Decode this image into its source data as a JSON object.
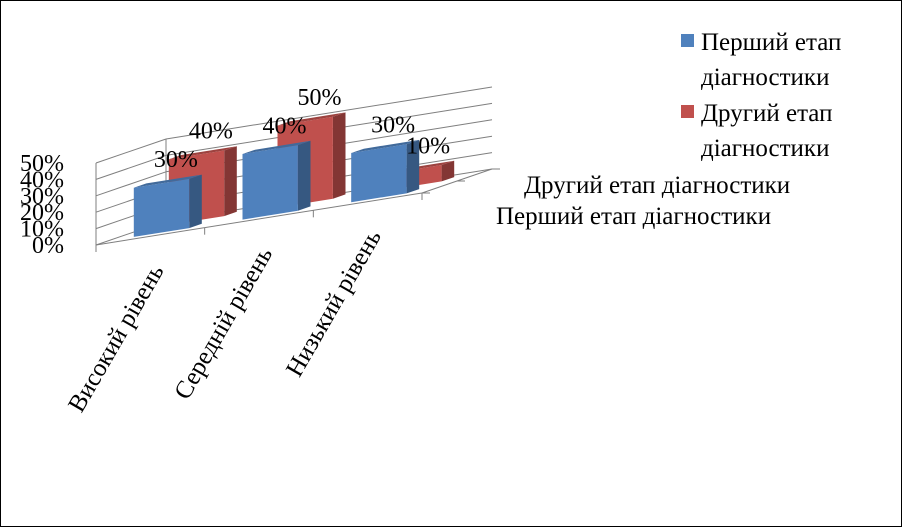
{
  "chart_data": {
    "type": "bar",
    "view": "3d-clustered-column",
    "categories": [
      "Високий рівень",
      "Середній рівень",
      "Низький рівень"
    ],
    "series": [
      {
        "name": "Перший етап діагностики",
        "values": [
          30,
          40,
          30
        ],
        "labels": [
          "30%",
          "40%",
          "30%"
        ],
        "color": "#4F81BD"
      },
      {
        "name": "Другий етап діагностики",
        "values": [
          40,
          50,
          10
        ],
        "labels": [
          "40%",
          "50%",
          "10%"
        ],
        "color": "#C0504D"
      }
    ],
    "y_ticks": [
      "0%",
      "10%",
      "20%",
      "30%",
      "40%",
      "50%"
    ],
    "depth_labels": [
      "Другий етап діагностики",
      "Перший етап діагностики"
    ],
    "ylim": [
      0,
      50
    ],
    "grid": true,
    "legend_position": "top-right"
  },
  "legend": {
    "items": [
      {
        "text": "Перший етап діагностики",
        "color": "#4F81BD"
      },
      {
        "text": "Другий етап діагностики",
        "color": "#C0504D"
      }
    ]
  }
}
